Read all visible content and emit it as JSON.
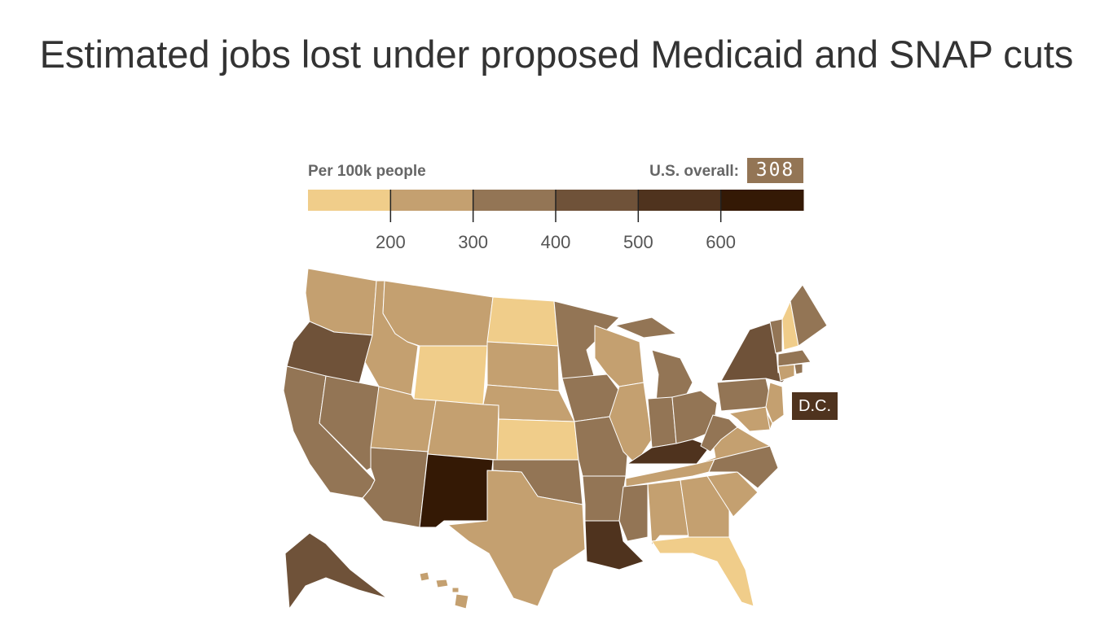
{
  "title": "Estimated jobs lost under proposed Medicaid and SNAP cuts",
  "legend": {
    "label": "Per 100k people",
    "overall_label": "U.S. overall:",
    "overall_value": "308"
  },
  "dc_label": "D.C.",
  "chart_data": {
    "type": "choropleth",
    "title": "Estimated jobs lost under proposed Medicaid and SNAP cuts",
    "unit": "Per 100k people",
    "us_overall": 308,
    "bins": [
      {
        "range": "<200",
        "color": "#f0cd8a"
      },
      {
        "range": "200-300",
        "color": "#c4a070"
      },
      {
        "range": "300-400",
        "color": "#937555"
      },
      {
        "range": "400-500",
        "color": "#6f5239"
      },
      {
        "range": "500-600",
        "color": "#4f331e"
      },
      {
        "range": "600+",
        "color": "#341905"
      }
    ],
    "tick_labels": [
      "200",
      "300",
      "400",
      "500",
      "600"
    ],
    "state_bins": {
      "WA": 1,
      "OR": 3,
      "CA": 2,
      "NV": 2,
      "ID": 1,
      "MT": 1,
      "WY": 0,
      "UT": 1,
      "CO": 1,
      "AZ": 2,
      "NM": 5,
      "ND": 0,
      "SD": 1,
      "NE": 1,
      "KS": 0,
      "OK": 2,
      "TX": 1,
      "MN": 2,
      "IA": 2,
      "MO": 2,
      "AR": 2,
      "LA": 4,
      "WI": 1,
      "IL": 1,
      "MI": 2,
      "IN": 2,
      "OH": 2,
      "KY": 4,
      "TN": 1,
      "MS": 2,
      "AL": 1,
      "GA": 1,
      "FL": 0,
      "SC": 1,
      "NC": 2,
      "VA": 1,
      "WV": 2,
      "PA": 2,
      "NY": 3,
      "VT": 2,
      "NH": 0,
      "ME": 2,
      "MA": 2,
      "CT": 1,
      "RI": 2,
      "NJ": 1,
      "DE": 1,
      "MD": 1,
      "AK": 3,
      "HI": 1,
      "DC": 4
    }
  }
}
